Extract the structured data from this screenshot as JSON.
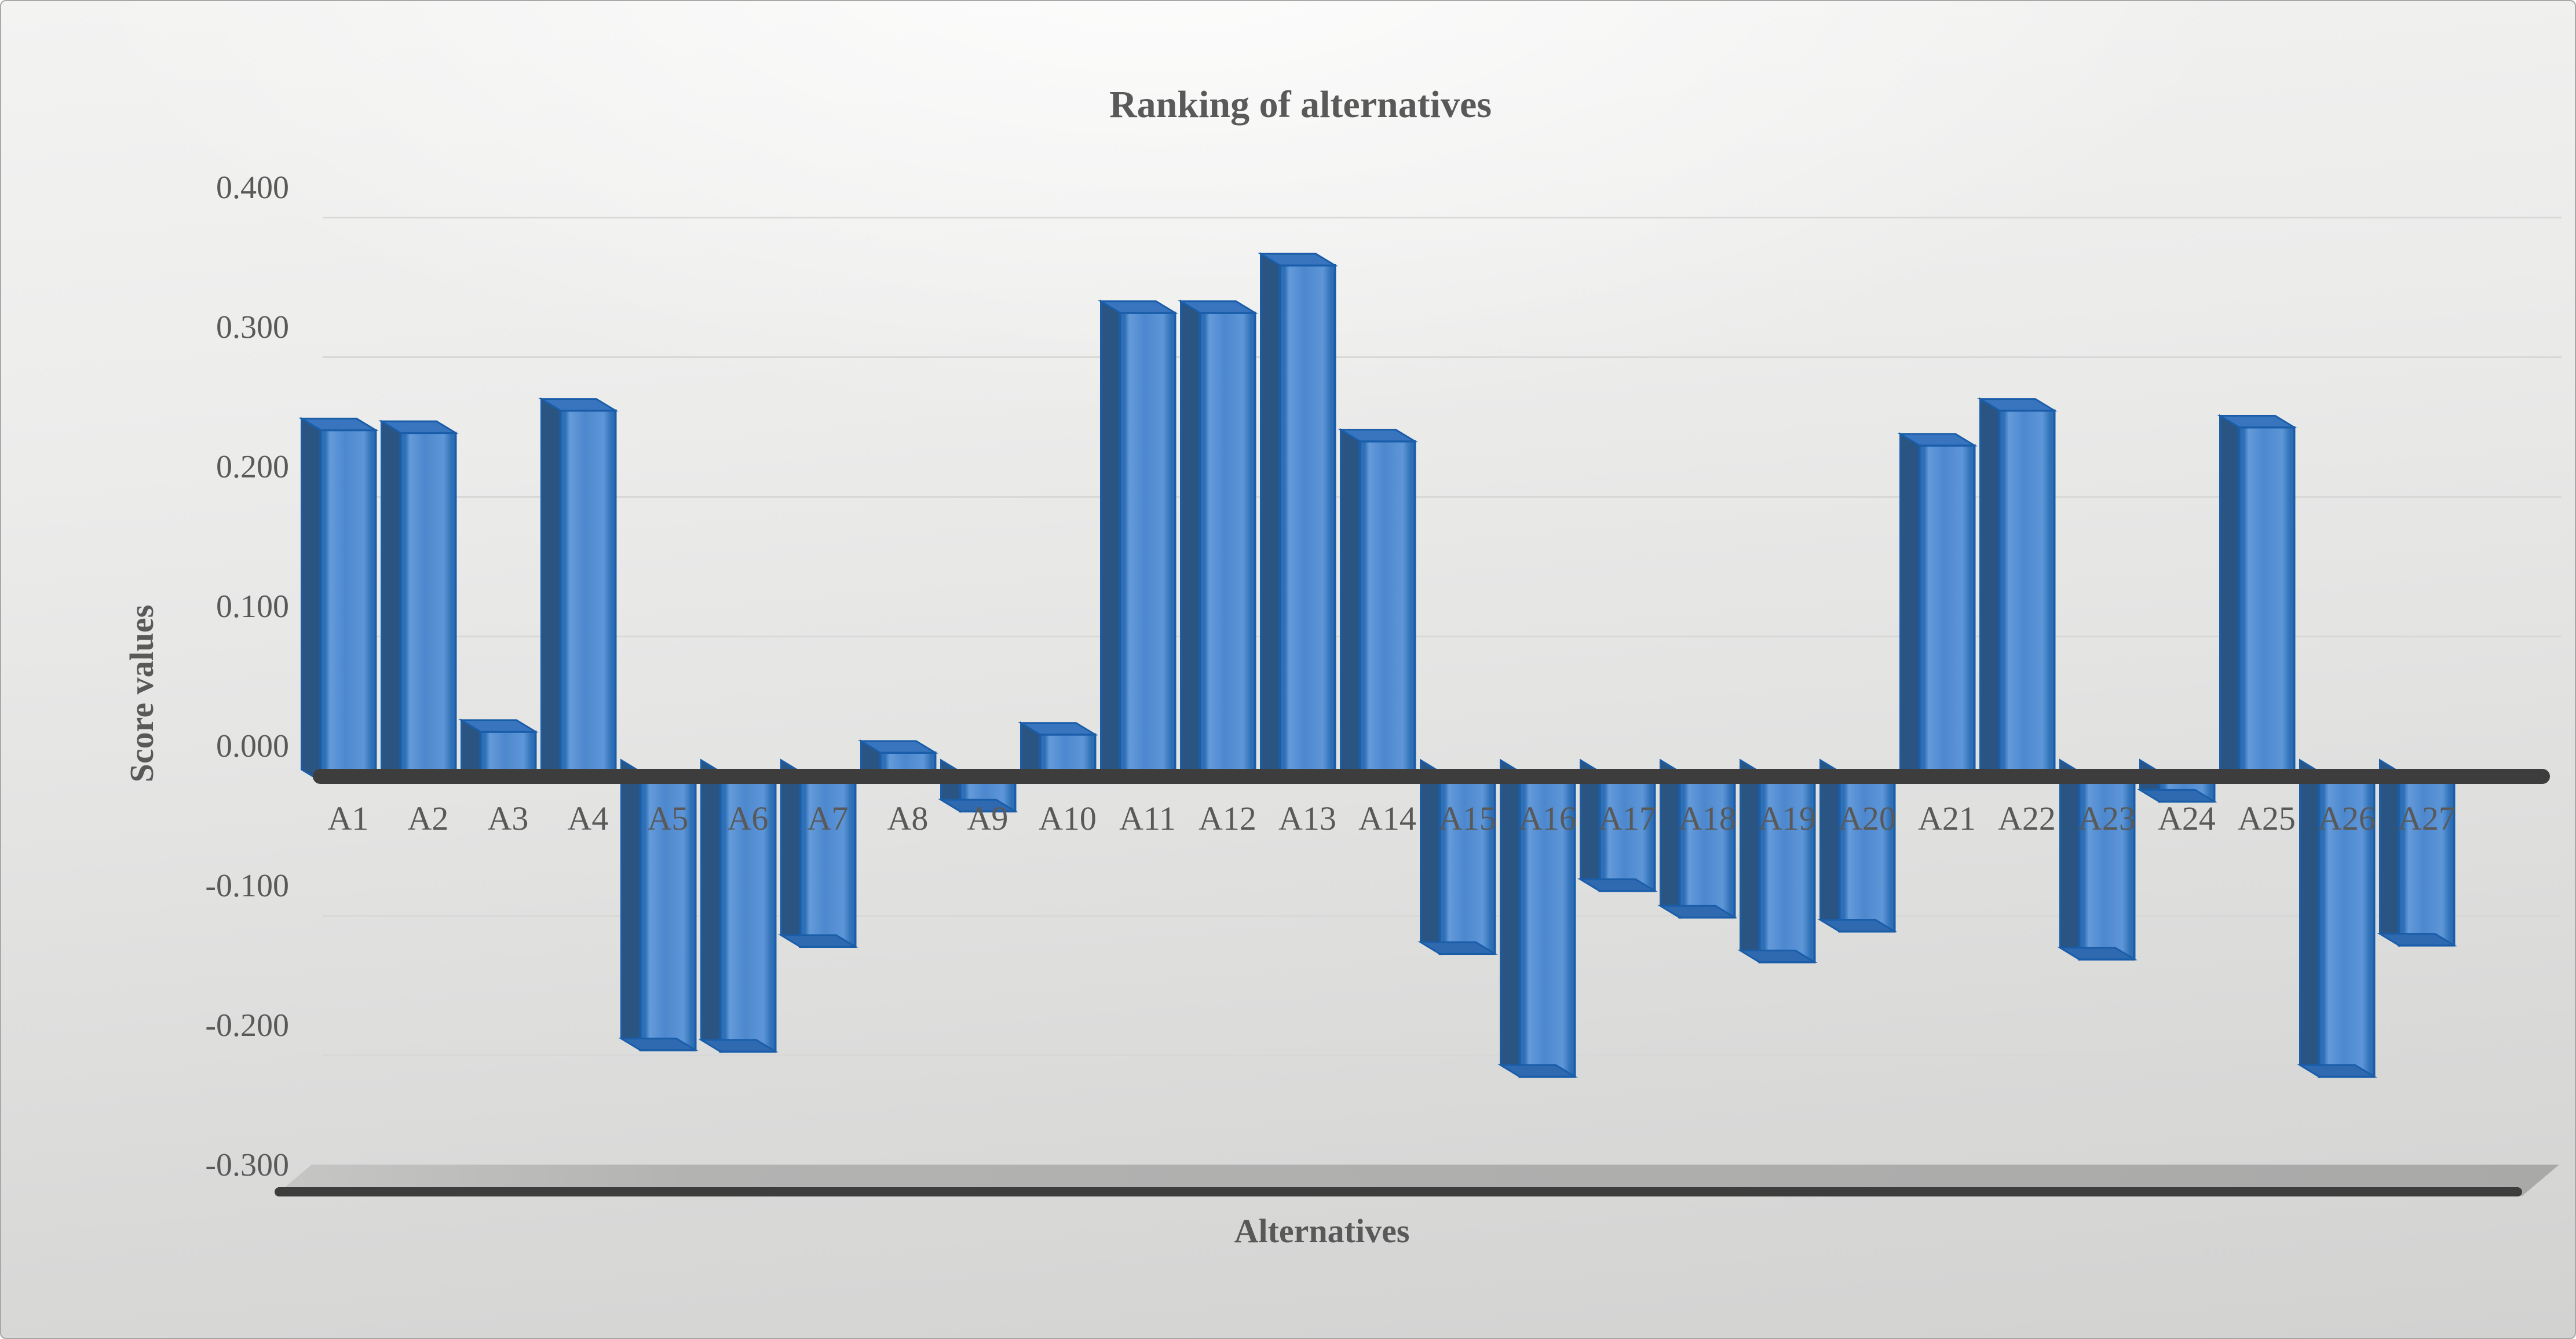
{
  "chart": {
    "window_kind": "chart-figure",
    "background_top": "#f3f3f2",
    "background_bottom": "#d2d2d1",
    "frame_border": "#a8a8a8",
    "text_color": "#595959",
    "gridline_color": "#d8d8d7",
    "axis_line_color": "#3d3d3d",
    "floor_fill": "#b0b0af",
    "bar_front": "#4d87ce",
    "bar_front_edge": "#1a5da8",
    "bar_side": "#2a5582",
    "bar_top": "#3875be",
    "bar_bottom_band": "#2f6ab0"
  },
  "chart_data": {
    "type": "bar",
    "style": "3d-column",
    "title": "Ranking of alternatives",
    "xlabel": "Alternatives",
    "ylabel": "Score values",
    "categories": [
      "A1",
      "A2",
      "A3",
      "A4",
      "A5",
      "A6",
      "A7",
      "A8",
      "A9",
      "A10",
      "A11",
      "A12",
      "A13",
      "A14",
      "A15",
      "A16",
      "A17",
      "A18",
      "A19",
      "A20",
      "A21",
      "A22",
      "A23",
      "A24",
      "A25",
      "A26",
      "A27"
    ],
    "values": [
      0.248,
      0.246,
      0.032,
      0.262,
      -0.196,
      -0.197,
      -0.122,
      0.017,
      -0.025,
      0.03,
      0.332,
      0.332,
      0.366,
      0.24,
      -0.127,
      -0.215,
      -0.082,
      -0.101,
      -0.133,
      -0.111,
      0.237,
      0.262,
      -0.131,
      -0.018,
      0.25,
      -0.215,
      -0.121
    ],
    "ylim": [
      -0.3,
      0.4
    ],
    "ytick_step": 0.1,
    "y_ticks": [
      "0.400",
      "0.300",
      "0.200",
      "0.100",
      "0.000",
      "-0.100",
      "-0.200",
      "-0.300"
    ],
    "y_tick_values": [
      0.4,
      0.3,
      0.2,
      0.1,
      0.0,
      -0.1,
      -0.2,
      -0.3
    ],
    "grid": true,
    "legend": false
  }
}
